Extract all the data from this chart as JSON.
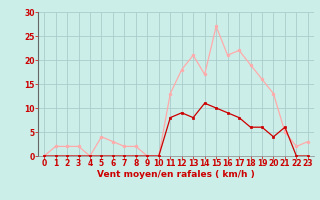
{
  "xlabel": "Vent moyen/en rafales ( km/h )",
  "bg_color": "#cceee8",
  "grid_color": "#aacccc",
  "line_color_avg": "#cc0000",
  "line_color_gust": "#ffaaaa",
  "ylim": [
    0,
    30
  ],
  "xlim": [
    -0.5,
    23.5
  ],
  "yticks": [
    0,
    5,
    10,
    15,
    20,
    25,
    30
  ],
  "xticks": [
    0,
    1,
    2,
    3,
    4,
    5,
    6,
    7,
    8,
    9,
    10,
    11,
    12,
    13,
    14,
    15,
    16,
    17,
    18,
    19,
    20,
    21,
    22,
    23
  ],
  "hours": [
    0,
    1,
    2,
    3,
    4,
    5,
    6,
    7,
    8,
    9,
    10,
    11,
    12,
    13,
    14,
    15,
    16,
    17,
    18,
    19,
    20,
    21,
    22,
    23
  ],
  "avg_wind": [
    0,
    0,
    0,
    0,
    0,
    0,
    0,
    0,
    0,
    0,
    0,
    8,
    9,
    8,
    11,
    10,
    9,
    8,
    6,
    6,
    4,
    6,
    0,
    0
  ],
  "gust_wind": [
    0,
    2,
    2,
    2,
    0,
    4,
    3,
    2,
    2,
    0,
    0,
    13,
    18,
    21,
    17,
    27,
    21,
    22,
    19,
    16,
    13,
    5,
    2,
    3
  ],
  "tick_fontsize": 5.5,
  "xlabel_fontsize": 6.5
}
